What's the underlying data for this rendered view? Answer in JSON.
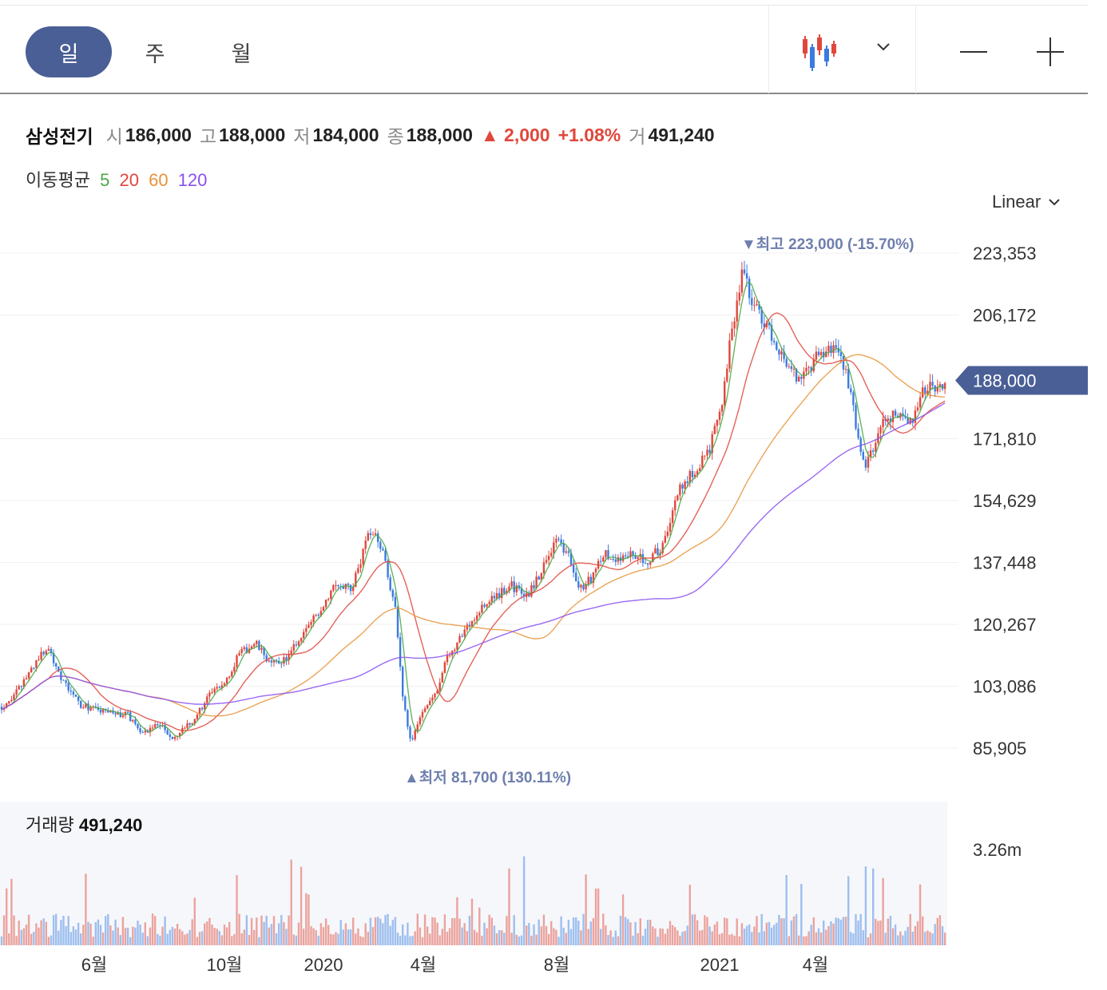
{
  "toolbar": {
    "periods": [
      {
        "label": "일",
        "active": true
      },
      {
        "label": "주",
        "active": false
      },
      {
        "label": "월",
        "active": false
      }
    ],
    "chart_type_icon": "candlestick-icon",
    "dropdown_icon": "chevron-down-icon",
    "zoom_out_icon": "minus-icon",
    "zoom_in_icon": "plus-icon"
  },
  "quote": {
    "name": "삼성전기",
    "open_label": "시",
    "open": "186,000",
    "high_label": "고",
    "high": "188,000",
    "low_label": "저",
    "low": "184,000",
    "close_label": "종",
    "close": "188,000",
    "change": "▲ 2,000",
    "change_pct": "+1.08%",
    "volume_label": "거",
    "volume": "491,240"
  },
  "moving_average": {
    "label": "이동평균",
    "periods": [
      {
        "value": "5",
        "color": "#4aa84a"
      },
      {
        "value": "20",
        "color": "#e0473c"
      },
      {
        "value": "60",
        "color": "#e8943a"
      },
      {
        "value": "120",
        "color": "#8a4ff0"
      }
    ]
  },
  "scale": {
    "label": "Linear"
  },
  "colors": {
    "up": "#e0473c",
    "down": "#3b7be0",
    "badge": "#4a5f96",
    "annotation": "#6e7fae"
  },
  "chart_data": {
    "type": "candlestick",
    "y_ticks": [
      "223,353",
      "206,172",
      "171,810",
      "154,629",
      "137,448",
      "120,267",
      "103,086",
      "85,905"
    ],
    "y_tick_values": [
      223353,
      206172,
      171810,
      154629,
      137448,
      120267,
      103086,
      85905
    ],
    "x_ticks": [
      "6월",
      "10월",
      "2020",
      "4월",
      "8월",
      "2021",
      "4월"
    ],
    "current_price": "188,000",
    "current_value": 188000,
    "high_annotation": {
      "label": "▼최고",
      "value": "223,000 (-15.70%)",
      "price": 223000
    },
    "low_annotation": {
      "label": "▲최저",
      "value": "81,700 (130.11%)",
      "price": 81700
    },
    "trend": [
      [
        0,
        97000
      ],
      [
        20,
        101000
      ],
      [
        45,
        110000
      ],
      [
        60,
        114000
      ],
      [
        80,
        104000
      ],
      [
        100,
        98000
      ],
      [
        130,
        96000
      ],
      [
        160,
        95000
      ],
      [
        180,
        90000
      ],
      [
        200,
        93000
      ],
      [
        215,
        88000
      ],
      [
        240,
        93000
      ],
      [
        260,
        100000
      ],
      [
        280,
        104000
      ],
      [
        300,
        112000
      ],
      [
        320,
        115000
      ],
      [
        340,
        109000
      ],
      [
        360,
        111000
      ],
      [
        380,
        118000
      ],
      [
        400,
        124000
      ],
      [
        420,
        132000
      ],
      [
        440,
        130000
      ],
      [
        460,
        144000
      ],
      [
        468,
        147000
      ],
      [
        480,
        140000
      ],
      [
        495,
        124000
      ],
      [
        505,
        98000
      ],
      [
        515,
        88000
      ],
      [
        530,
        97000
      ],
      [
        545,
        101000
      ],
      [
        560,
        111000
      ],
      [
        580,
        118000
      ],
      [
        600,
        124000
      ],
      [
        620,
        128000
      ],
      [
        640,
        131000
      ],
      [
        660,
        128000
      ],
      [
        680,
        136000
      ],
      [
        695,
        144000
      ],
      [
        710,
        140000
      ],
      [
        725,
        130000
      ],
      [
        740,
        133000
      ],
      [
        755,
        140000
      ],
      [
        770,
        138000
      ],
      [
        790,
        140000
      ],
      [
        810,
        138000
      ],
      [
        830,
        142000
      ],
      [
        850,
        158000
      ],
      [
        870,
        163000
      ],
      [
        890,
        170000
      ],
      [
        905,
        182000
      ],
      [
        915,
        200000
      ],
      [
        930,
        219000
      ],
      [
        945,
        208000
      ],
      [
        960,
        203000
      ],
      [
        975,
        197000
      ],
      [
        990,
        190000
      ],
      [
        1005,
        188000
      ],
      [
        1020,
        194000
      ],
      [
        1035,
        196000
      ],
      [
        1048,
        197000
      ],
      [
        1060,
        190000
      ],
      [
        1070,
        178000
      ],
      [
        1082,
        164000
      ],
      [
        1095,
        170000
      ],
      [
        1110,
        178000
      ],
      [
        1125,
        178000
      ],
      [
        1140,
        176000
      ],
      [
        1155,
        186000
      ],
      [
        1170,
        186000
      ],
      [
        1185,
        188000
      ]
    ],
    "volume_max_label": "3.26m",
    "volume_title": "거래량",
    "volume_value": "491,240"
  }
}
